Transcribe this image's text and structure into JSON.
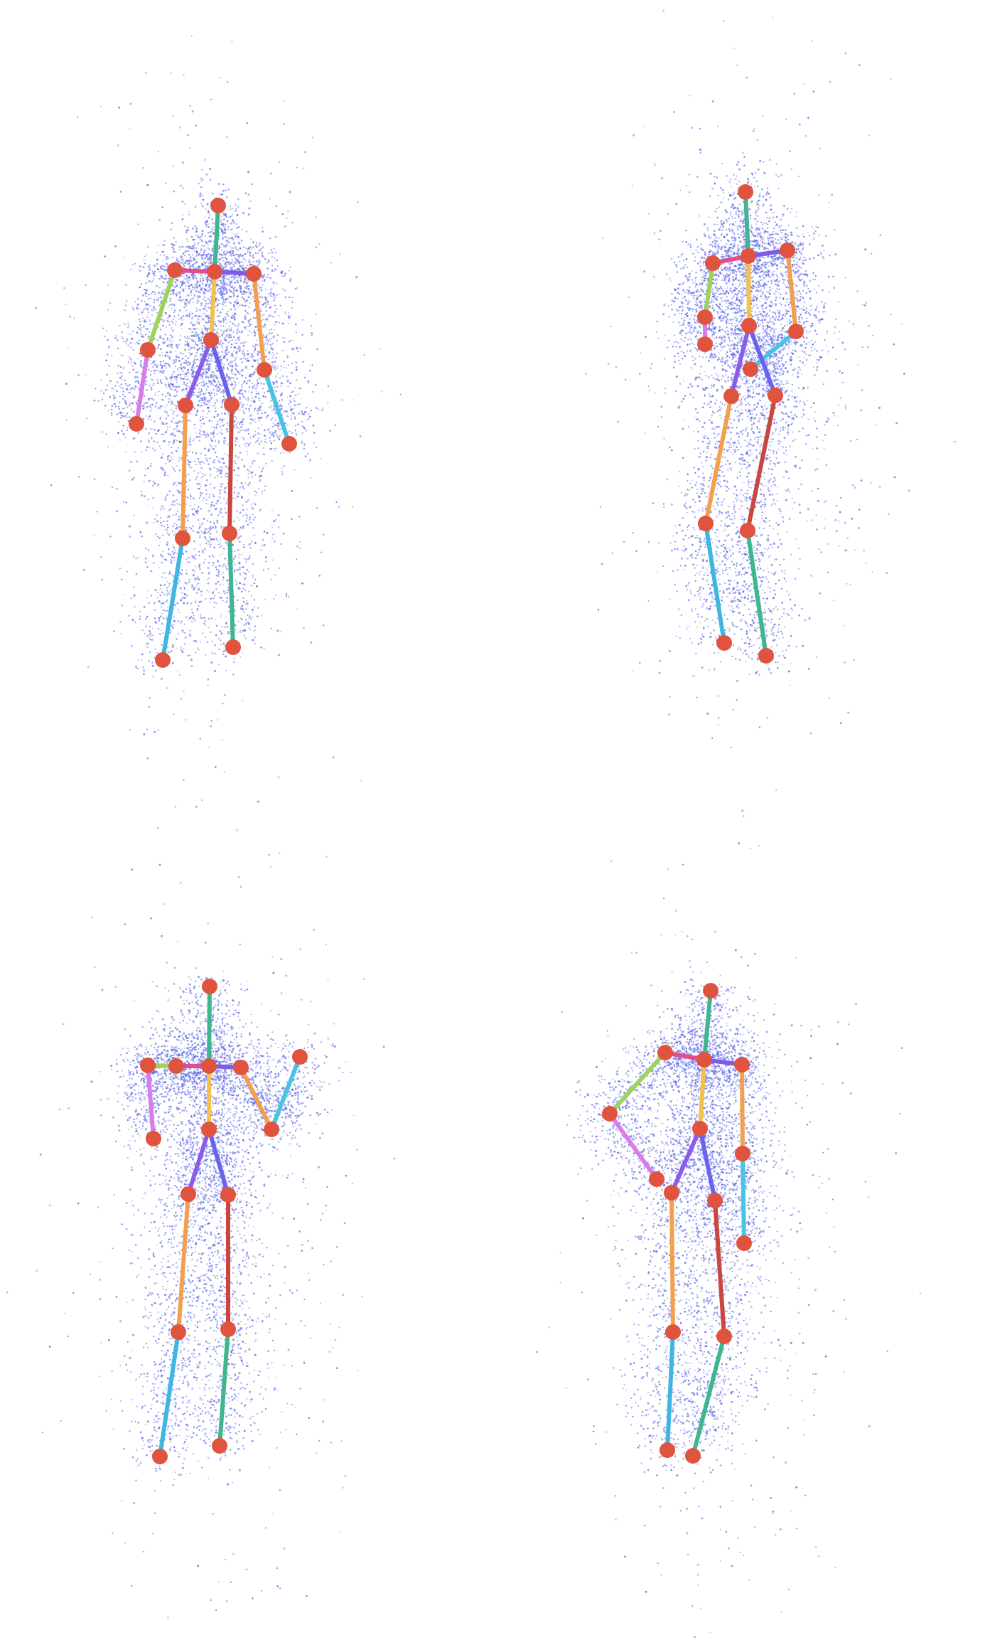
{
  "figure": {
    "point_color": "#5a66e6",
    "joint_color": "#e0533f",
    "bone_colors": {
      "neck": "#3fb68e",
      "spine_upper": "#f2c14e",
      "spine_lower": "#f2b24a",
      "clavicle_left": "#e24d8c",
      "clavicle_right": "#7e5ce6",
      "upper_arm_left": "#9cd45a",
      "forearm_left": "#d97be8",
      "upper_arm_right": "#f0a04e",
      "forearm_right": "#47c4e0",
      "hip_left": "#8a5ce8",
      "hip_right": "#6a62ea",
      "thigh_left": "#f2a04e",
      "shin_left": "#3fb6e0",
      "thigh_right": "#c9473e",
      "shin_right": "#3fb68e"
    },
    "panels": [
      {
        "id": "top-left",
        "cloud": {
          "cx": 300,
          "cy": 580,
          "rx": 150,
          "ry": 420
        },
        "joints": {
          "head": [
            307,
            289
          ],
          "neck": [
            302,
            382
          ],
          "shoulder_l": [
            246,
            380
          ],
          "shoulder_r": [
            357,
            385
          ],
          "elbow_l": [
            208,
            492
          ],
          "elbow_r": [
            372,
            520
          ],
          "wrist_l": [
            192,
            596
          ],
          "wrist_r": [
            407,
            624
          ],
          "spine": [
            297,
            478
          ],
          "hip_l": [
            261,
            570
          ],
          "hip_r": [
            326,
            569
          ],
          "knee_l": [
            257,
            757
          ],
          "knee_r": [
            323,
            750
          ],
          "ankle_l": [
            229,
            928
          ],
          "ankle_r": [
            328,
            910
          ]
        }
      },
      {
        "id": "top-right",
        "cloud": {
          "cx": 360,
          "cy": 580,
          "rx": 150,
          "ry": 420
        },
        "joints": {
          "head": [
            356,
            270
          ],
          "neck": [
            360,
            360
          ],
          "shoulder_l": [
            310,
            370
          ],
          "shoulder_r": [
            415,
            352
          ],
          "elbow_l": [
            299,
            446
          ],
          "elbow_r": [
            427,
            466
          ],
          "wrist_l": [
            299,
            484
          ],
          "wrist_r": [
            363,
            519
          ],
          "spine": [
            361,
            458
          ],
          "hip_l": [
            336,
            557
          ],
          "hip_r": [
            398,
            556
          ],
          "knee_l": [
            300,
            736
          ],
          "knee_r": [
            359,
            746
          ],
          "ankle_l": [
            326,
            904
          ],
          "ankle_r": [
            385,
            922
          ]
        }
      },
      {
        "id": "bottom-left",
        "cloud": {
          "cx": 300,
          "cy": 590,
          "rx": 160,
          "ry": 430
        },
        "joints": {
          "head": [
            295,
            231
          ],
          "neck": [
            294,
            343
          ],
          "shoulder_l": [
            248,
            343
          ],
          "shoulder_r": [
            339,
            345
          ],
          "elbow_l": [
            208,
            342
          ],
          "elbow_r": [
            382,
            432
          ],
          "wrist_l": [
            216,
            445
          ],
          "wrist_r": [
            422,
            330
          ],
          "spine": [
            294,
            432
          ],
          "hip_l": [
            265,
            523
          ],
          "hip_r": [
            321,
            524
          ],
          "knee_l": [
            251,
            717
          ],
          "knee_r": [
            321,
            713
          ],
          "ankle_l": [
            225,
            892
          ],
          "ankle_r": [
            309,
            877
          ]
        }
      },
      {
        "id": "bottom-right",
        "cloud": {
          "cx": 310,
          "cy": 600,
          "rx": 160,
          "ry": 430
        },
        "joints": {
          "head": [
            307,
            237
          ],
          "neck": [
            298,
            334
          ],
          "shoulder_l": [
            243,
            324
          ],
          "shoulder_r": [
            351,
            341
          ],
          "elbow_l": [
            165,
            410
          ],
          "elbow_r": [
            352,
            466
          ],
          "wrist_l": [
            231,
            502
          ],
          "wrist_r": [
            354,
            592
          ],
          "spine": [
            292,
            431
          ],
          "hip_l": [
            252,
            521
          ],
          "hip_r": [
            313,
            532
          ],
          "knee_l": [
            254,
            717
          ],
          "knee_r": [
            326,
            723
          ],
          "ankle_l": [
            246,
            883
          ],
          "ankle_r": [
            282,
            891
          ]
        }
      }
    ]
  }
}
